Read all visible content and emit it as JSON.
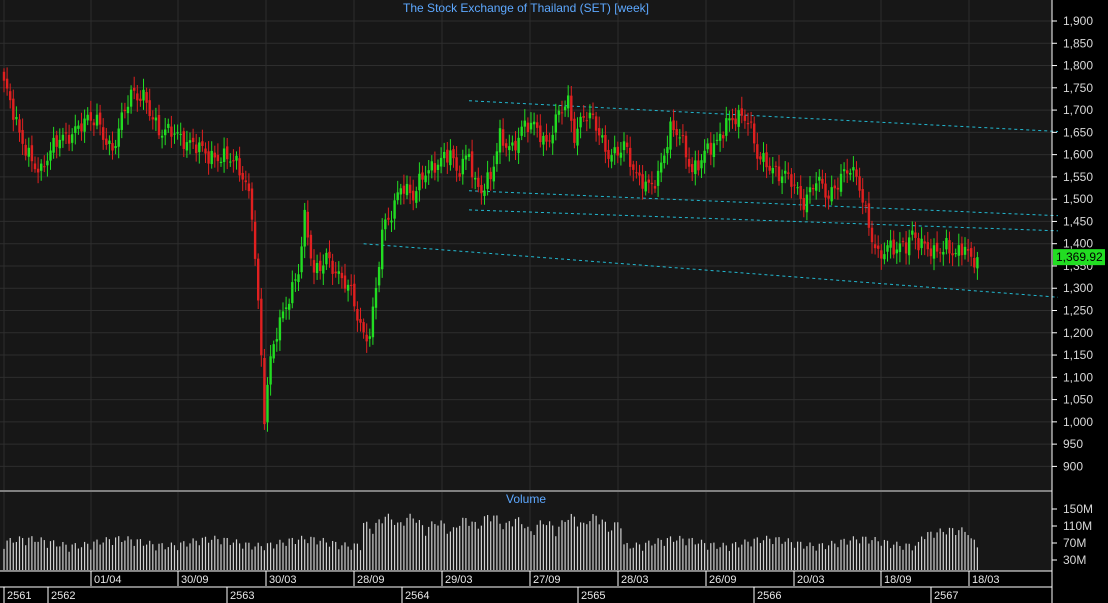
{
  "title": "The Stock Exchange of Thailand (SET) [week]",
  "volume_title": "Volume",
  "last_price_label": "1,369.92",
  "colors": {
    "background": "#000000",
    "panel": "#171717",
    "grid": "#2e2e2e",
    "up": "#22dd22",
    "down": "#e02020",
    "trendline": "#22b8d0",
    "volume": "#cfcfcf",
    "title": "#5da8ff",
    "last_price_bg": "#22dd22"
  },
  "chart_data": {
    "type": "candlestick",
    "title": "The Stock Exchange of Thailand (SET) [week]",
    "y_ticks": [
      "1,900",
      "1,850",
      "1,800",
      "1,750",
      "1,700",
      "1,650",
      "1,600",
      "1,550",
      "1,500",
      "1,450",
      "1,400",
      "1,350",
      "1,300",
      "1,250",
      "1,200",
      "1,150",
      "1,100",
      "1,050",
      "1,000",
      "950",
      "900"
    ],
    "y_range": [
      860,
      1920
    ],
    "volume_ticks": [
      "150M",
      "110M",
      "70M",
      "30M"
    ],
    "volume_range": [
      0,
      185
    ],
    "date_ticks": [
      "01/04",
      "30/09",
      "30/03",
      "28/09",
      "29/03",
      "27/09",
      "28/03",
      "26/09",
      "20/03",
      "18/09",
      "18/03"
    ],
    "year_ticks": [
      "2561",
      "2562",
      "2563",
      "2564",
      "2565",
      "2566",
      "2567"
    ],
    "last_price": 1369.92,
    "anchors": [
      {
        "i": 0,
        "p": 1760
      },
      {
        "i": 5,
        "p": 1640
      },
      {
        "i": 12,
        "p": 1560
      },
      {
        "i": 18,
        "p": 1640
      },
      {
        "i": 24,
        "p": 1660
      },
      {
        "i": 30,
        "p": 1680
      },
      {
        "i": 35,
        "p": 1610
      },
      {
        "i": 41,
        "p": 1735
      },
      {
        "i": 45,
        "p": 1740
      },
      {
        "i": 50,
        "p": 1640
      },
      {
        "i": 55,
        "p": 1660
      },
      {
        "i": 60,
        "p": 1620
      },
      {
        "i": 66,
        "p": 1600
      },
      {
        "i": 70,
        "p": 1600
      },
      {
        "i": 74,
        "p": 1580
      },
      {
        "i": 78,
        "p": 1540
      },
      {
        "i": 80,
        "p": 1480
      },
      {
        "i": 82,
        "p": 1270
      },
      {
        "i": 84,
        "p": 1010
      },
      {
        "i": 86,
        "p": 1130
      },
      {
        "i": 88,
        "p": 1200
      },
      {
        "i": 91,
        "p": 1270
      },
      {
        "i": 95,
        "p": 1340
      },
      {
        "i": 97,
        "p": 1450
      },
      {
        "i": 100,
        "p": 1330
      },
      {
        "i": 104,
        "p": 1380
      },
      {
        "i": 108,
        "p": 1320
      },
      {
        "i": 112,
        "p": 1290
      },
      {
        "i": 116,
        "p": 1200
      },
      {
        "i": 118,
        "p": 1200
      },
      {
        "i": 120,
        "p": 1290
      },
      {
        "i": 122,
        "p": 1420
      },
      {
        "i": 125,
        "p": 1470
      },
      {
        "i": 128,
        "p": 1540
      },
      {
        "i": 132,
        "p": 1500
      },
      {
        "i": 136,
        "p": 1560
      },
      {
        "i": 140,
        "p": 1590
      },
      {
        "i": 144,
        "p": 1600
      },
      {
        "i": 146,
        "p": 1550
      },
      {
        "i": 150,
        "p": 1610
      },
      {
        "i": 152,
        "p": 1540
      },
      {
        "i": 154,
        "p": 1520
      },
      {
        "i": 157,
        "p": 1540
      },
      {
        "i": 160,
        "p": 1640
      },
      {
        "i": 164,
        "p": 1620
      },
      {
        "i": 168,
        "p": 1660
      },
      {
        "i": 172,
        "p": 1660
      },
      {
        "i": 175,
        "p": 1630
      },
      {
        "i": 179,
        "p": 1690
      },
      {
        "i": 182,
        "p": 1710
      },
      {
        "i": 184,
        "p": 1640
      },
      {
        "i": 187,
        "p": 1700
      },
      {
        "i": 190,
        "p": 1680
      },
      {
        "i": 194,
        "p": 1600
      },
      {
        "i": 196,
        "p": 1600
      },
      {
        "i": 200,
        "p": 1630
      },
      {
        "i": 204,
        "p": 1540
      },
      {
        "i": 208,
        "p": 1530
      },
      {
        "i": 211,
        "p": 1560
      },
      {
        "i": 215,
        "p": 1650
      },
      {
        "i": 218,
        "p": 1640
      },
      {
        "i": 222,
        "p": 1570
      },
      {
        "i": 226,
        "p": 1600
      },
      {
        "i": 230,
        "p": 1620
      },
      {
        "i": 233,
        "p": 1680
      },
      {
        "i": 236,
        "p": 1690
      },
      {
        "i": 240,
        "p": 1670
      },
      {
        "i": 243,
        "p": 1600
      },
      {
        "i": 246,
        "p": 1590
      },
      {
        "i": 250,
        "p": 1550
      },
      {
        "i": 254,
        "p": 1540
      },
      {
        "i": 258,
        "p": 1500
      },
      {
        "i": 262,
        "p": 1540
      },
      {
        "i": 266,
        "p": 1500
      },
      {
        "i": 270,
        "p": 1560
      },
      {
        "i": 273,
        "p": 1570
      },
      {
        "i": 276,
        "p": 1520
      },
      {
        "i": 279,
        "p": 1440
      },
      {
        "i": 282,
        "p": 1380
      },
      {
        "i": 285,
        "p": 1390
      },
      {
        "i": 288,
        "p": 1380
      },
      {
        "i": 291,
        "p": 1400
      },
      {
        "i": 293,
        "p": 1430
      },
      {
        "i": 296,
        "p": 1400
      },
      {
        "i": 300,
        "p": 1370
      },
      {
        "i": 304,
        "p": 1400
      },
      {
        "i": 308,
        "p": 1380
      },
      {
        "i": 310,
        "p": 1390
      },
      {
        "i": 312,
        "p": 1350
      },
      {
        "i": 314,
        "p": 1370
      }
    ],
    "trendlines": [
      {
        "p1": [
          150,
          1721
        ],
        "p2": [
          340,
          1652
        ]
      },
      {
        "p1": [
          150,
          1519
        ],
        "p2": [
          340,
          1463
        ]
      },
      {
        "p1": [
          150,
          1476
        ],
        "p2": [
          340,
          1429
        ]
      },
      {
        "p1": [
          116,
          1400
        ],
        "p2": [
          340,
          1280
        ]
      }
    ]
  }
}
